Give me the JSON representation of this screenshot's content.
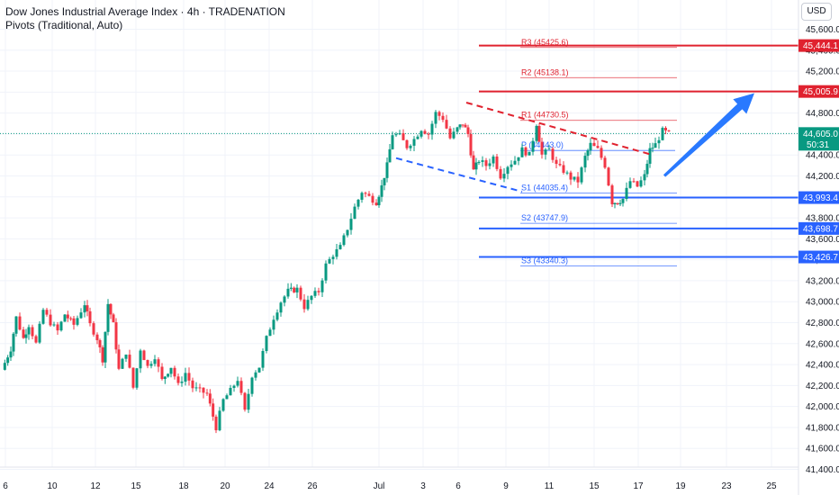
{
  "header": {
    "title": "Dow Jones Industrial Average Index · 4h · TRADENATION",
    "subtitle": "Pivots (Traditional, Auto)",
    "currency": "USD"
  },
  "colors": {
    "bull": "#089981",
    "bear": "#f23645",
    "resistance": "#e0222f",
    "support": "#2962ff",
    "last_price": "#089981",
    "arrow": "#2979ff"
  },
  "chart_data": {
    "type": "candlestick",
    "ylim": [
      41250,
      45750
    ],
    "xlim": [
      0,
      930
    ],
    "y_ticks": [
      "45,600.0",
      "45,400.0",
      "45,200.0",
      "45,000.0",
      "44,800.0",
      "44,600.0",
      "44,400.0",
      "44,200.0",
      "44,000.0",
      "43,800.0",
      "43,600.0",
      "43,400.0",
      "43,200.0",
      "43,000.0",
      "42,800.0",
      "42,600.0",
      "42,400.0",
      "42,200.0",
      "42,000.0",
      "41,800.0",
      "41,600.0",
      "41,400.0"
    ],
    "y_tick_values": [
      45600,
      45400,
      45200,
      45000,
      44800,
      44600,
      44400,
      44200,
      44000,
      43800,
      43600,
      43400,
      43200,
      43000,
      42800,
      42600,
      42400,
      42200,
      42000,
      41800,
      41600,
      41400
    ],
    "x_ticks": [
      {
        "label": "6",
        "x": 6
      },
      {
        "label": "10",
        "x": 58
      },
      {
        "label": "12",
        "x": 106
      },
      {
        "label": "15",
        "x": 151
      },
      {
        "label": "18",
        "x": 204
      },
      {
        "label": "20",
        "x": 250
      },
      {
        "label": "24",
        "x": 299
      },
      {
        "label": "26",
        "x": 347
      },
      {
        "label": "Jul",
        "x": 421
      },
      {
        "label": "3",
        "x": 470
      },
      {
        "label": "6",
        "x": 509
      },
      {
        "label": "9",
        "x": 562
      },
      {
        "label": "11",
        "x": 610
      },
      {
        "label": "15",
        "x": 660
      },
      {
        "label": "17",
        "x": 709
      },
      {
        "label": "19",
        "x": 756
      },
      {
        "label": "23",
        "x": 807
      },
      {
        "label": "25",
        "x": 857
      }
    ],
    "price_path": [
      [
        2,
        42350
      ],
      [
        12,
        42550
      ],
      [
        18,
        42850
      ],
      [
        26,
        42650
      ],
      [
        32,
        42780
      ],
      [
        40,
        42600
      ],
      [
        48,
        42920
      ],
      [
        56,
        42800
      ],
      [
        64,
        42720
      ],
      [
        72,
        42880
      ],
      [
        82,
        42780
      ],
      [
        94,
        42980
      ],
      [
        100,
        42780
      ],
      [
        108,
        42650
      ],
      [
        114,
        42450
      ],
      [
        120,
        42980
      ],
      [
        126,
        42780
      ],
      [
        132,
        42350
      ],
      [
        140,
        42520
      ],
      [
        148,
        42180
      ],
      [
        156,
        42550
      ],
      [
        164,
        42380
      ],
      [
        172,
        42480
      ],
      [
        180,
        42250
      ],
      [
        190,
        42380
      ],
      [
        198,
        42200
      ],
      [
        206,
        42320
      ],
      [
        214,
        42180
      ],
      [
        222,
        42150
      ],
      [
        230,
        42120
      ],
      [
        240,
        41800
      ],
      [
        248,
        42060
      ],
      [
        256,
        42150
      ],
      [
        264,
        42260
      ],
      [
        272,
        41950
      ],
      [
        280,
        42300
      ],
      [
        288,
        42380
      ],
      [
        296,
        42650
      ],
      [
        304,
        42850
      ],
      [
        312,
        43000
      ],
      [
        320,
        43100
      ],
      [
        330,
        43120
      ],
      [
        338,
        42950
      ],
      [
        346,
        43050
      ],
      [
        354,
        43100
      ],
      [
        362,
        43350
      ],
      [
        370,
        43450
      ],
      [
        378,
        43520
      ],
      [
        386,
        43700
      ],
      [
        394,
        43900
      ],
      [
        402,
        44050
      ],
      [
        410,
        44000
      ],
      [
        418,
        43950
      ],
      [
        424,
        44100
      ],
      [
        430,
        44300
      ],
      [
        436,
        44600
      ],
      [
        444,
        44580
      ],
      [
        452,
        44480
      ],
      [
        460,
        44550
      ],
      [
        468,
        44650
      ],
      [
        476,
        44600
      ],
      [
        484,
        44800
      ],
      [
        492,
        44750
      ],
      [
        500,
        44560
      ],
      [
        508,
        44650
      ],
      [
        514,
        44700
      ],
      [
        520,
        44600
      ],
      [
        526,
        44250
      ],
      [
        532,
        44350
      ],
      [
        540,
        44300
      ],
      [
        548,
        44380
      ],
      [
        556,
        44200
      ],
      [
        564,
        44300
      ],
      [
        572,
        44350
      ],
      [
        580,
        44450
      ],
      [
        588,
        44400
      ],
      [
        596,
        44700
      ],
      [
        602,
        44400
      ],
      [
        610,
        44450
      ],
      [
        618,
        44300
      ],
      [
        626,
        44250
      ],
      [
        634,
        44180
      ],
      [
        642,
        44150
      ],
      [
        650,
        44380
      ],
      [
        656,
        44500
      ],
      [
        664,
        44450
      ],
      [
        672,
        44300
      ],
      [
        680,
        43950
      ],
      [
        686,
        43950
      ],
      [
        692,
        43980
      ],
      [
        700,
        44150
      ],
      [
        708,
        44100
      ],
      [
        716,
        44200
      ],
      [
        722,
        44450
      ],
      [
        728,
        44500
      ],
      [
        736,
        44630
      ],
      [
        743,
        44605
      ]
    ],
    "candle_width": 3,
    "last_price": {
      "value": 44605,
      "label": "44,605.0",
      "countdown": "50:31"
    },
    "pivots": {
      "R3": {
        "label": "R3 (45425.6)",
        "value": 45425.6,
        "tag": "45,444.1",
        "tag_value": 45444.1
      },
      "R2": {
        "label": "R2 (45138.1)",
        "value": 45138.1,
        "tag": "45,005.9",
        "tag_value": 45005.9
      },
      "R1": {
        "label": "R1 (44730.5)",
        "value": 44730.5
      },
      "P": {
        "label": "P (44443.0)",
        "value": 44443.0
      },
      "S1": {
        "label": "S1 (44035.4)",
        "value": 44035.4,
        "tag": "43,993.4",
        "tag_value": 43993.4
      },
      "S2": {
        "label": "S2 (43747.9)",
        "value": 43747.9,
        "tag": "43,698.7",
        "tag_value": 43698.7
      },
      "S3": {
        "label": "S3 (43340.3)",
        "value": 43340.3,
        "tag": "43,426.7",
        "tag_value": 43426.7
      }
    },
    "trendlines": {
      "upper": {
        "from": [
          518,
          44900
        ],
        "to": [
          725,
          44400
        ],
        "color": "resistance"
      },
      "lower": {
        "from": [
          440,
          44370
        ],
        "to": [
          580,
          44050
        ],
        "color": "support"
      }
    },
    "forecast_arrow": {
      "from": [
        738,
        44200
      ],
      "to": [
        838,
        44990
      ]
    }
  }
}
